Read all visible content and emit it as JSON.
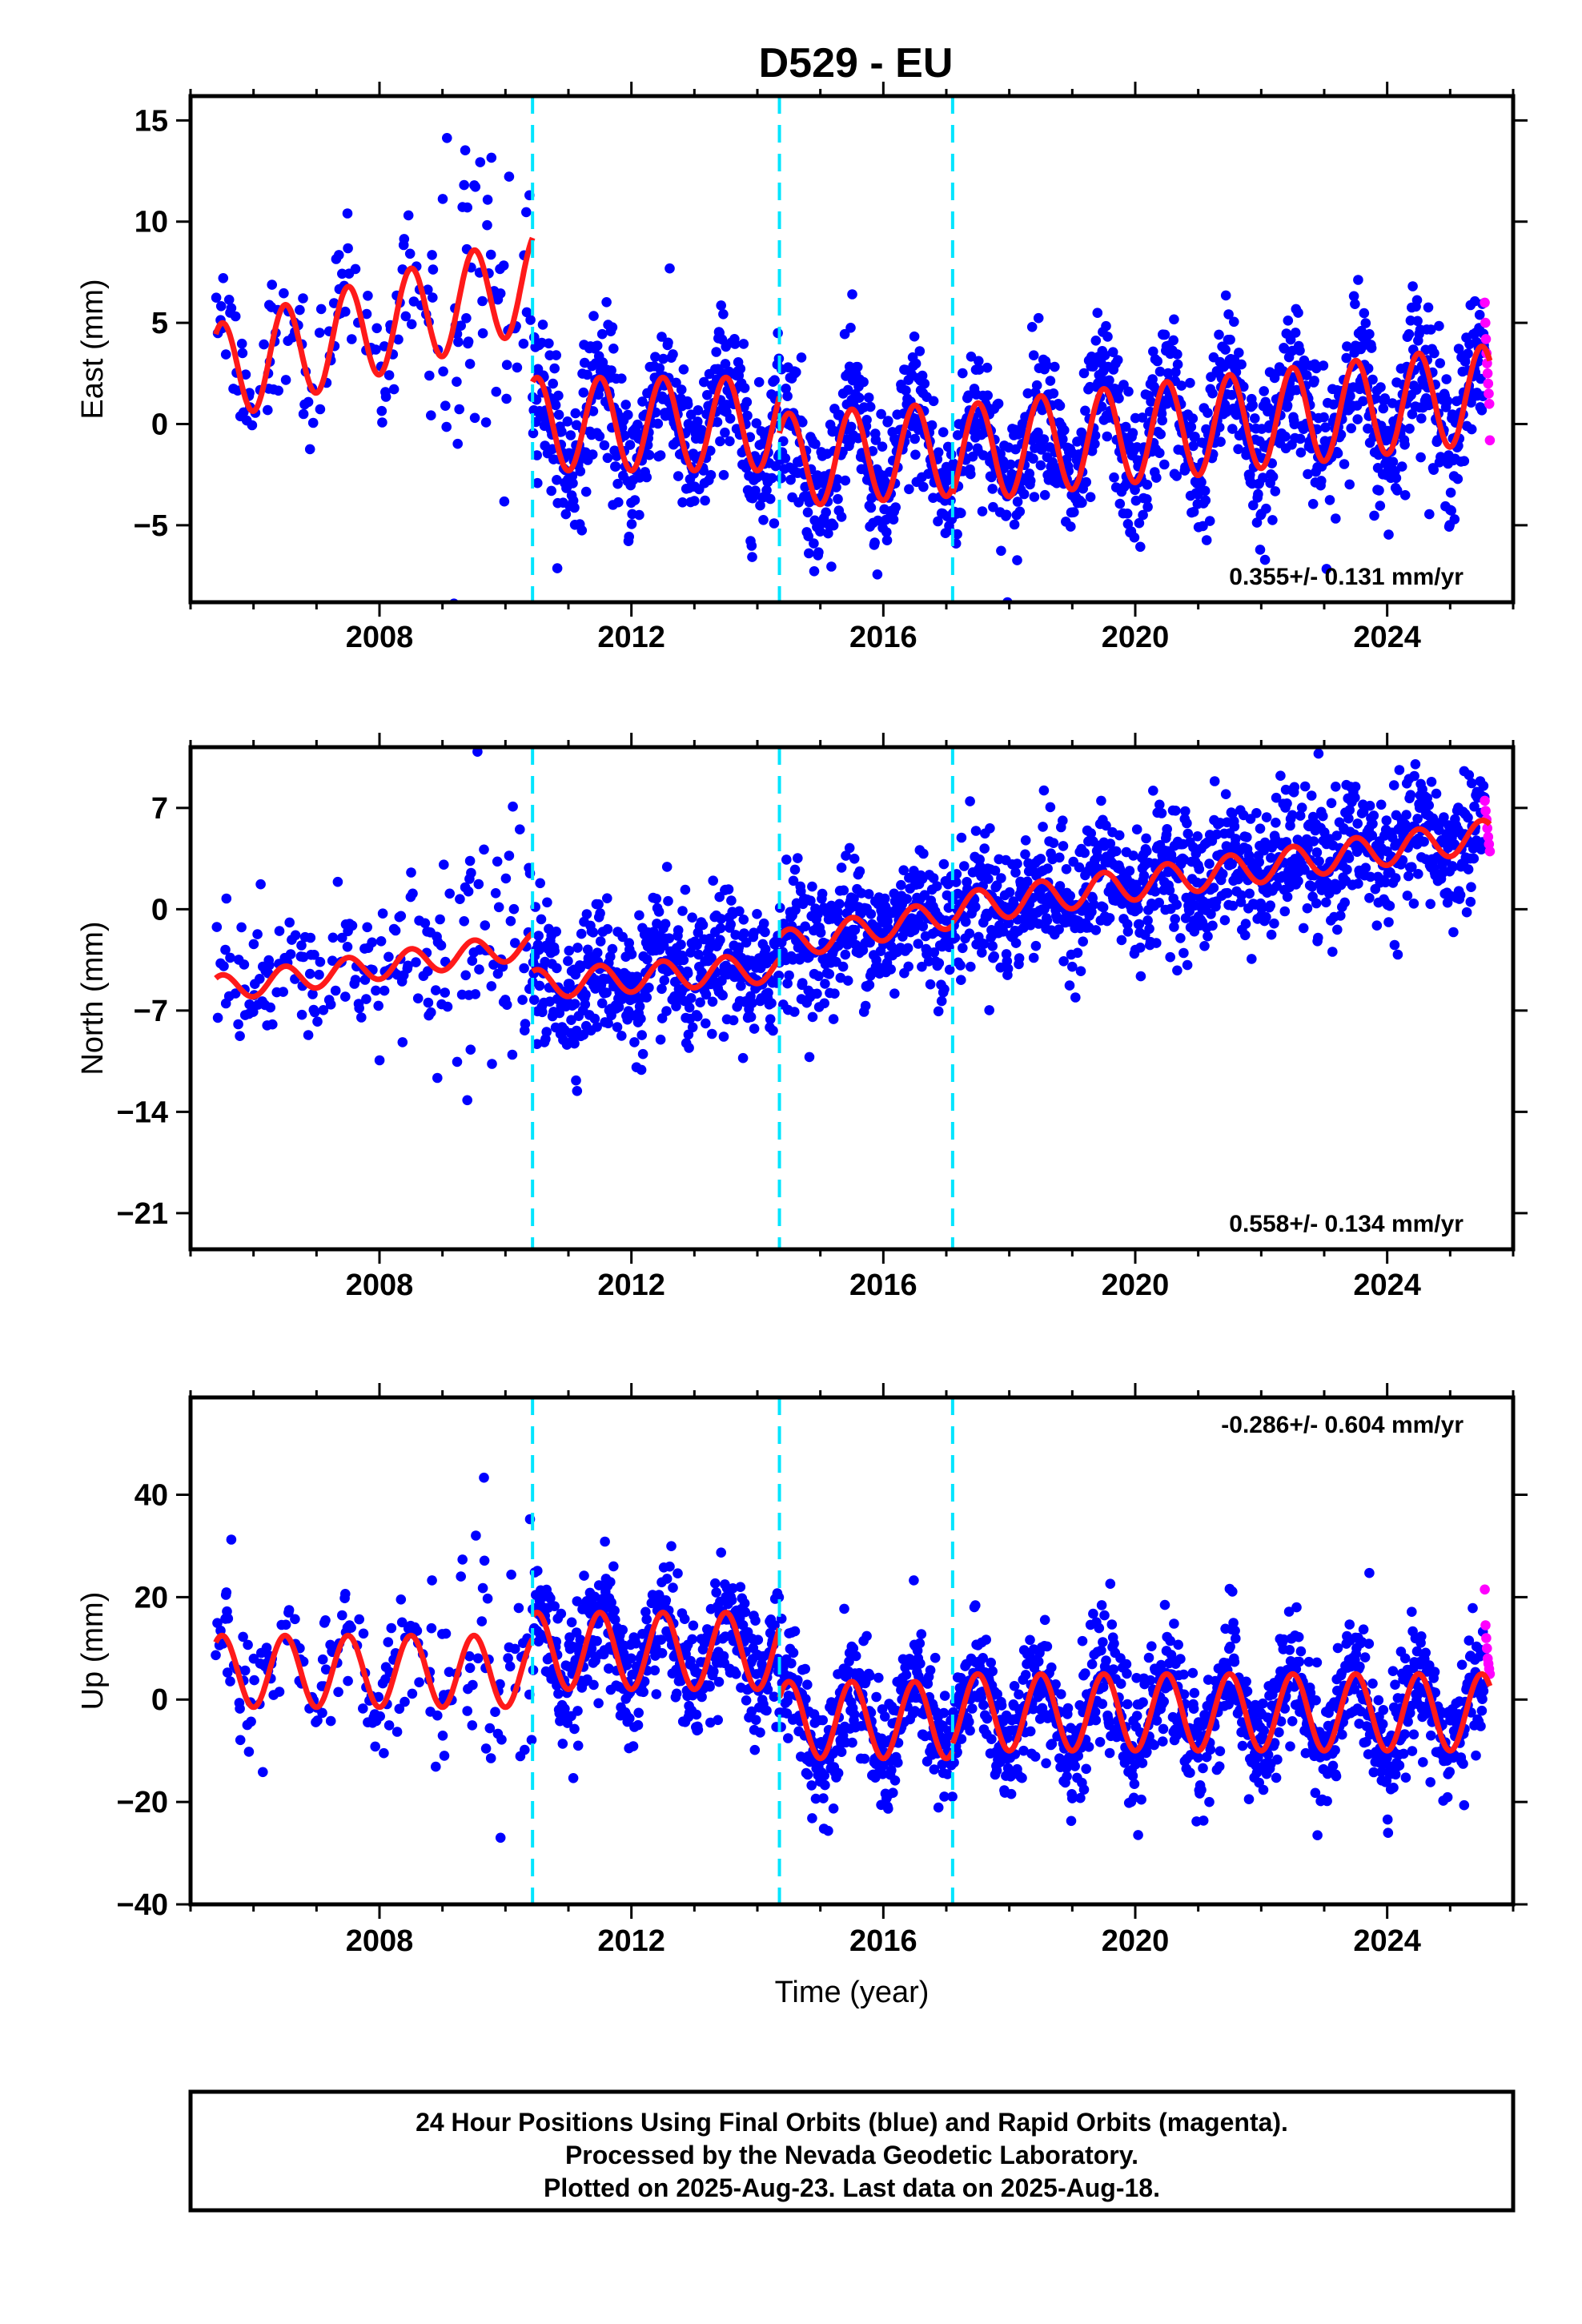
{
  "chart_data": {
    "title": "D529 - EU",
    "xlabel": "Time (year)",
    "x_ticks": [
      2008,
      2012,
      2016,
      2020,
      2024
    ],
    "xlim": [
      2005.0,
      2026.0
    ],
    "breaks": [
      2010.43,
      2014.35,
      2017.1
    ],
    "colors": {
      "final": "#0000ff",
      "rapid": "#ff00ff",
      "model": "#ff1a1a",
      "break": "#00e5ff"
    },
    "data_range": [
      2005.4,
      2025.63
    ],
    "rapid_range": [
      2025.55,
      2025.63
    ],
    "panels": [
      {
        "type": "scatter",
        "name": "east",
        "ylabel": "East (mm)",
        "ylim": [
          -8.8,
          16.2
        ],
        "y_ticks": [
          15,
          10,
          5,
          0,
          -5
        ],
        "y_tick_labels": [
          "15",
          "10",
          "5",
          "0",
          "−5"
        ],
        "rate_label": "0.355+/- 0.131 mm/yr",
        "rate_position": "bottom-right",
        "segments": [
          {
            "start": 2005.4,
            "end": 2010.43,
            "offset": 2.5,
            "trend": 0.9,
            "amplitude": 2.4
          },
          {
            "start": 2010.43,
            "end": 2014.35,
            "offset": 0.0,
            "trend": 0.0,
            "amplitude": 2.3
          },
          {
            "start": 2014.35,
            "end": 2017.1,
            "offset": -1.8,
            "trend": 0.2,
            "amplitude": 2.3
          },
          {
            "start": 2017.1,
            "end": 2025.63,
            "offset": -1.5,
            "trend": 0.35,
            "amplitude": 2.4
          }
        ],
        "rapid_values": [
          6.0,
          5.0,
          4.2,
          3.5,
          3.0,
          2.5,
          2.0,
          1.5,
          1.0,
          -0.8
        ]
      },
      {
        "type": "scatter",
        "name": "north",
        "ylabel": "North (mm)",
        "ylim": [
          -23.5,
          11.2
        ],
        "y_ticks": [
          7,
          0,
          -7,
          -14,
          -21
        ],
        "y_tick_labels": [
          "7",
          "0",
          "−7",
          "−14",
          "−21"
        ],
        "rate_label": "0.558+/- 0.134 mm/yr",
        "rate_position": "bottom-right",
        "segments": [
          {
            "start": 2005.4,
            "end": 2010.43,
            "offset": -5.5,
            "trend": 0.6,
            "amplitude": 0.9
          },
          {
            "start": 2010.43,
            "end": 2014.35,
            "offset": -5.2,
            "trend": 0.3,
            "amplitude": 1.0
          },
          {
            "start": 2014.35,
            "end": 2017.1,
            "offset": -2.5,
            "trend": 0.8,
            "amplitude": 1.0
          },
          {
            "start": 2017.1,
            "end": 2025.63,
            "offset": 0.0,
            "trend": 0.6,
            "amplitude": 1.1
          }
        ],
        "rapid_values": [
          7.5,
          6.8,
          6.2,
          5.6,
          5.0,
          4.5,
          4.0
        ]
      },
      {
        "type": "scatter",
        "name": "up",
        "ylabel": "Up (mm)",
        "ylim": [
          -40.0,
          59.0
        ],
        "y_ticks": [
          40,
          20,
          0,
          -20,
          -40
        ],
        "y_tick_labels": [
          "40",
          "20",
          "0",
          "−20",
          "−40"
        ],
        "rate_label": "-0.286+/- 0.604 mm/yr",
        "rate_position": "top-right",
        "segments": [
          {
            "start": 2005.4,
            "end": 2010.43,
            "offset": 5.5,
            "trend": 0.0,
            "amplitude": 7.0
          },
          {
            "start": 2010.43,
            "end": 2014.35,
            "offset": 9.5,
            "trend": 0.0,
            "amplitude": 7.5
          },
          {
            "start": 2014.35,
            "end": 2017.1,
            "offset": -4.0,
            "trend": 0.0,
            "amplitude": 7.5
          },
          {
            "start": 2017.1,
            "end": 2025.63,
            "offset": -2.5,
            "trend": 0.0,
            "amplitude": 7.5
          }
        ],
        "rapid_values": [
          21.5,
          14.5,
          12.0,
          10.0,
          8.0,
          7.0,
          6.0,
          5.0
        ]
      }
    ]
  },
  "footer": {
    "line1": "24 Hour Positions Using Final Orbits (blue) and Rapid Orbits (magenta).",
    "line2": "Processed by the Nevada Geodetic Laboratory.",
    "line3": "Plotted on 2025-Aug-23. Last data on 2025-Aug-18."
  }
}
